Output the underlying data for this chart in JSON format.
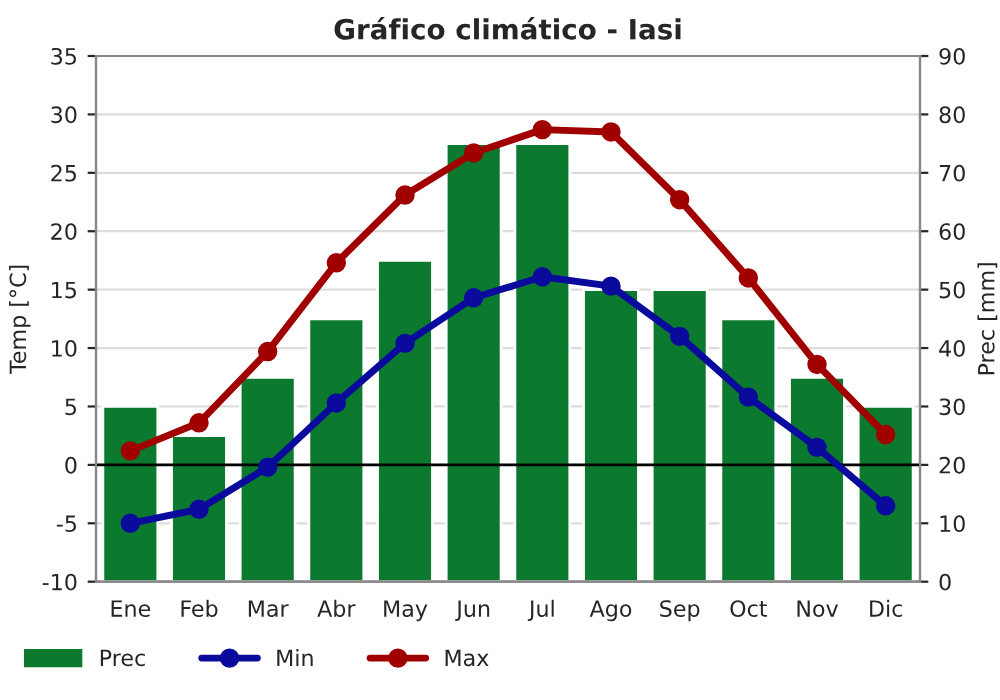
{
  "chart_data": {
    "type": "bar",
    "title": "Gráfico climático - Iasi",
    "ylabel": "Temp [°C]",
    "y2label": "Prec [mm]",
    "categories": [
      "Ene",
      "Feb",
      "Mar",
      "Abr",
      "May",
      "Jun",
      "Jul",
      "Ago",
      "Sep",
      "Oct",
      "Nov",
      "Dic"
    ],
    "series": [
      {
        "name": "Prec",
        "axis": "y2",
        "color": "#0c7a2e",
        "values": [
          30,
          25,
          35,
          45,
          55,
          75,
          75,
          50,
          50,
          45,
          35,
          30
        ]
      },
      {
        "name": "Min",
        "type": "line",
        "axis": "y",
        "color": "#0a0a9c",
        "marker": "circle",
        "values": [
          -5,
          -3.8,
          -0.2,
          5.3,
          10.4,
          14.3,
          16.1,
          15.3,
          11,
          5.8,
          1.5,
          -3.5
        ]
      },
      {
        "name": "Max",
        "type": "line",
        "axis": "y",
        "color": "#a00000",
        "marker": "circle",
        "values": [
          1.2,
          3.6,
          9.7,
          17.3,
          23.1,
          26.7,
          28.7,
          28.5,
          22.7,
          16,
          8.6,
          2.6
        ]
      }
    ],
    "ylim": [
      -10,
      35
    ],
    "yticks": [
      -10,
      -5,
      0,
      5,
      10,
      15,
      20,
      25,
      30,
      35
    ],
    "y2lim": [
      0,
      90
    ],
    "y2ticks": [
      0,
      10,
      20,
      30,
      40,
      50,
      60,
      70,
      80,
      90
    ],
    "ref_lines": [
      {
        "axis": "y",
        "value": 0,
        "color": "#000000"
      }
    ],
    "grid": true,
    "legend": "bottom left"
  }
}
